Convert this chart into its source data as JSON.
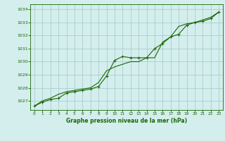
{
  "title": "Graphe pression niveau de la mer (hPa)",
  "background_color": "#d4eeee",
  "grid_color": "#aacccc",
  "line_color": "#1a6600",
  "text_color": "#1a6600",
  "ylim": [
    1026.3,
    1034.4
  ],
  "yticks": [
    1027,
    1028,
    1029,
    1030,
    1031,
    1032,
    1033,
    1034
  ],
  "xlim": [
    -0.5,
    23.5
  ],
  "xticks": [
    0,
    1,
    2,
    3,
    4,
    5,
    6,
    7,
    8,
    9,
    10,
    11,
    12,
    13,
    14,
    15,
    16,
    17,
    18,
    19,
    20,
    21,
    22,
    23
  ],
  "hours": [
    0,
    1,
    2,
    3,
    4,
    5,
    6,
    7,
    8,
    9,
    10,
    11,
    12,
    13,
    14,
    15,
    16,
    17,
    18,
    19,
    20,
    21,
    22,
    23
  ],
  "values1": [
    1026.6,
    1026.9,
    1027.1,
    1027.2,
    1027.6,
    1027.7,
    1027.8,
    1027.9,
    1028.1,
    1028.9,
    1030.1,
    1030.4,
    1030.3,
    1030.3,
    1030.3,
    1031.0,
    1031.4,
    1031.9,
    1032.1,
    1032.8,
    1033.0,
    1033.1,
    1033.3,
    1033.8
  ],
  "values2": [
    1026.6,
    1027.0,
    1027.2,
    1027.5,
    1027.7,
    1027.8,
    1027.9,
    1028.0,
    1028.4,
    1029.3,
    1029.6,
    1029.8,
    1030.0,
    1030.0,
    1030.3,
    1030.3,
    1031.5,
    1031.9,
    1032.7,
    1032.9,
    1033.0,
    1033.2,
    1033.4,
    1033.8
  ]
}
